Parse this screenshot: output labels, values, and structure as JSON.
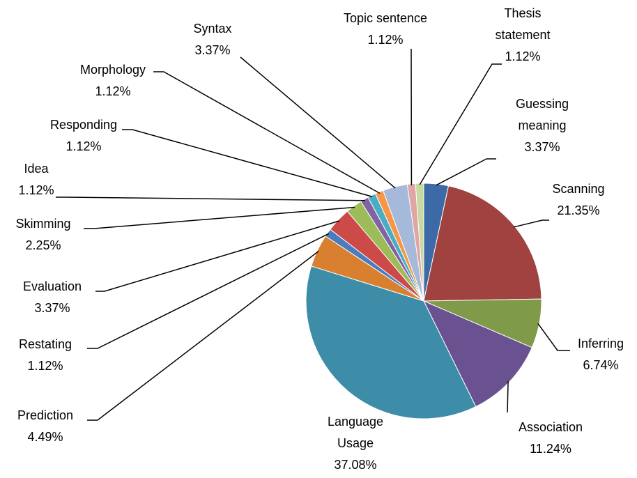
{
  "chart_data": {
    "type": "pie",
    "categories": [
      "Guessing meaning",
      "Scanning",
      "Inferring",
      "Association",
      "Language Usage",
      "Prediction",
      "Restating",
      "Evaluation",
      "Skimming",
      "Idea",
      "Responding",
      "Morphology",
      "Syntax",
      "Topic sentence",
      "Thesis statement"
    ],
    "values": [
      3.37,
      21.35,
      6.74,
      11.24,
      37.08,
      4.49,
      1.12,
      3.37,
      2.25,
      1.12,
      1.12,
      1.12,
      3.37,
      1.12,
      1.12
    ],
    "value_labels": [
      "3.37%",
      "21.35%",
      "6.74%",
      "11.24%",
      "37.08%",
      "4.49%",
      "1.12%",
      "3.37%",
      "2.25%",
      "1.12%",
      "1.12%",
      "1.12%",
      "3.37%",
      "1.12%",
      "1.12%"
    ],
    "colors": [
      "#3C6AA6",
      "#A04340",
      "#7F9A48",
      "#6A5190",
      "#3D8DA8",
      "#D98030",
      "#4A7CC0",
      "#CC4A48",
      "#9CBB59",
      "#8064A2",
      "#4BACC6",
      "#F79646",
      "#A5B9DA",
      "#E0A5A5",
      "#C8DAA0"
    ]
  }
}
